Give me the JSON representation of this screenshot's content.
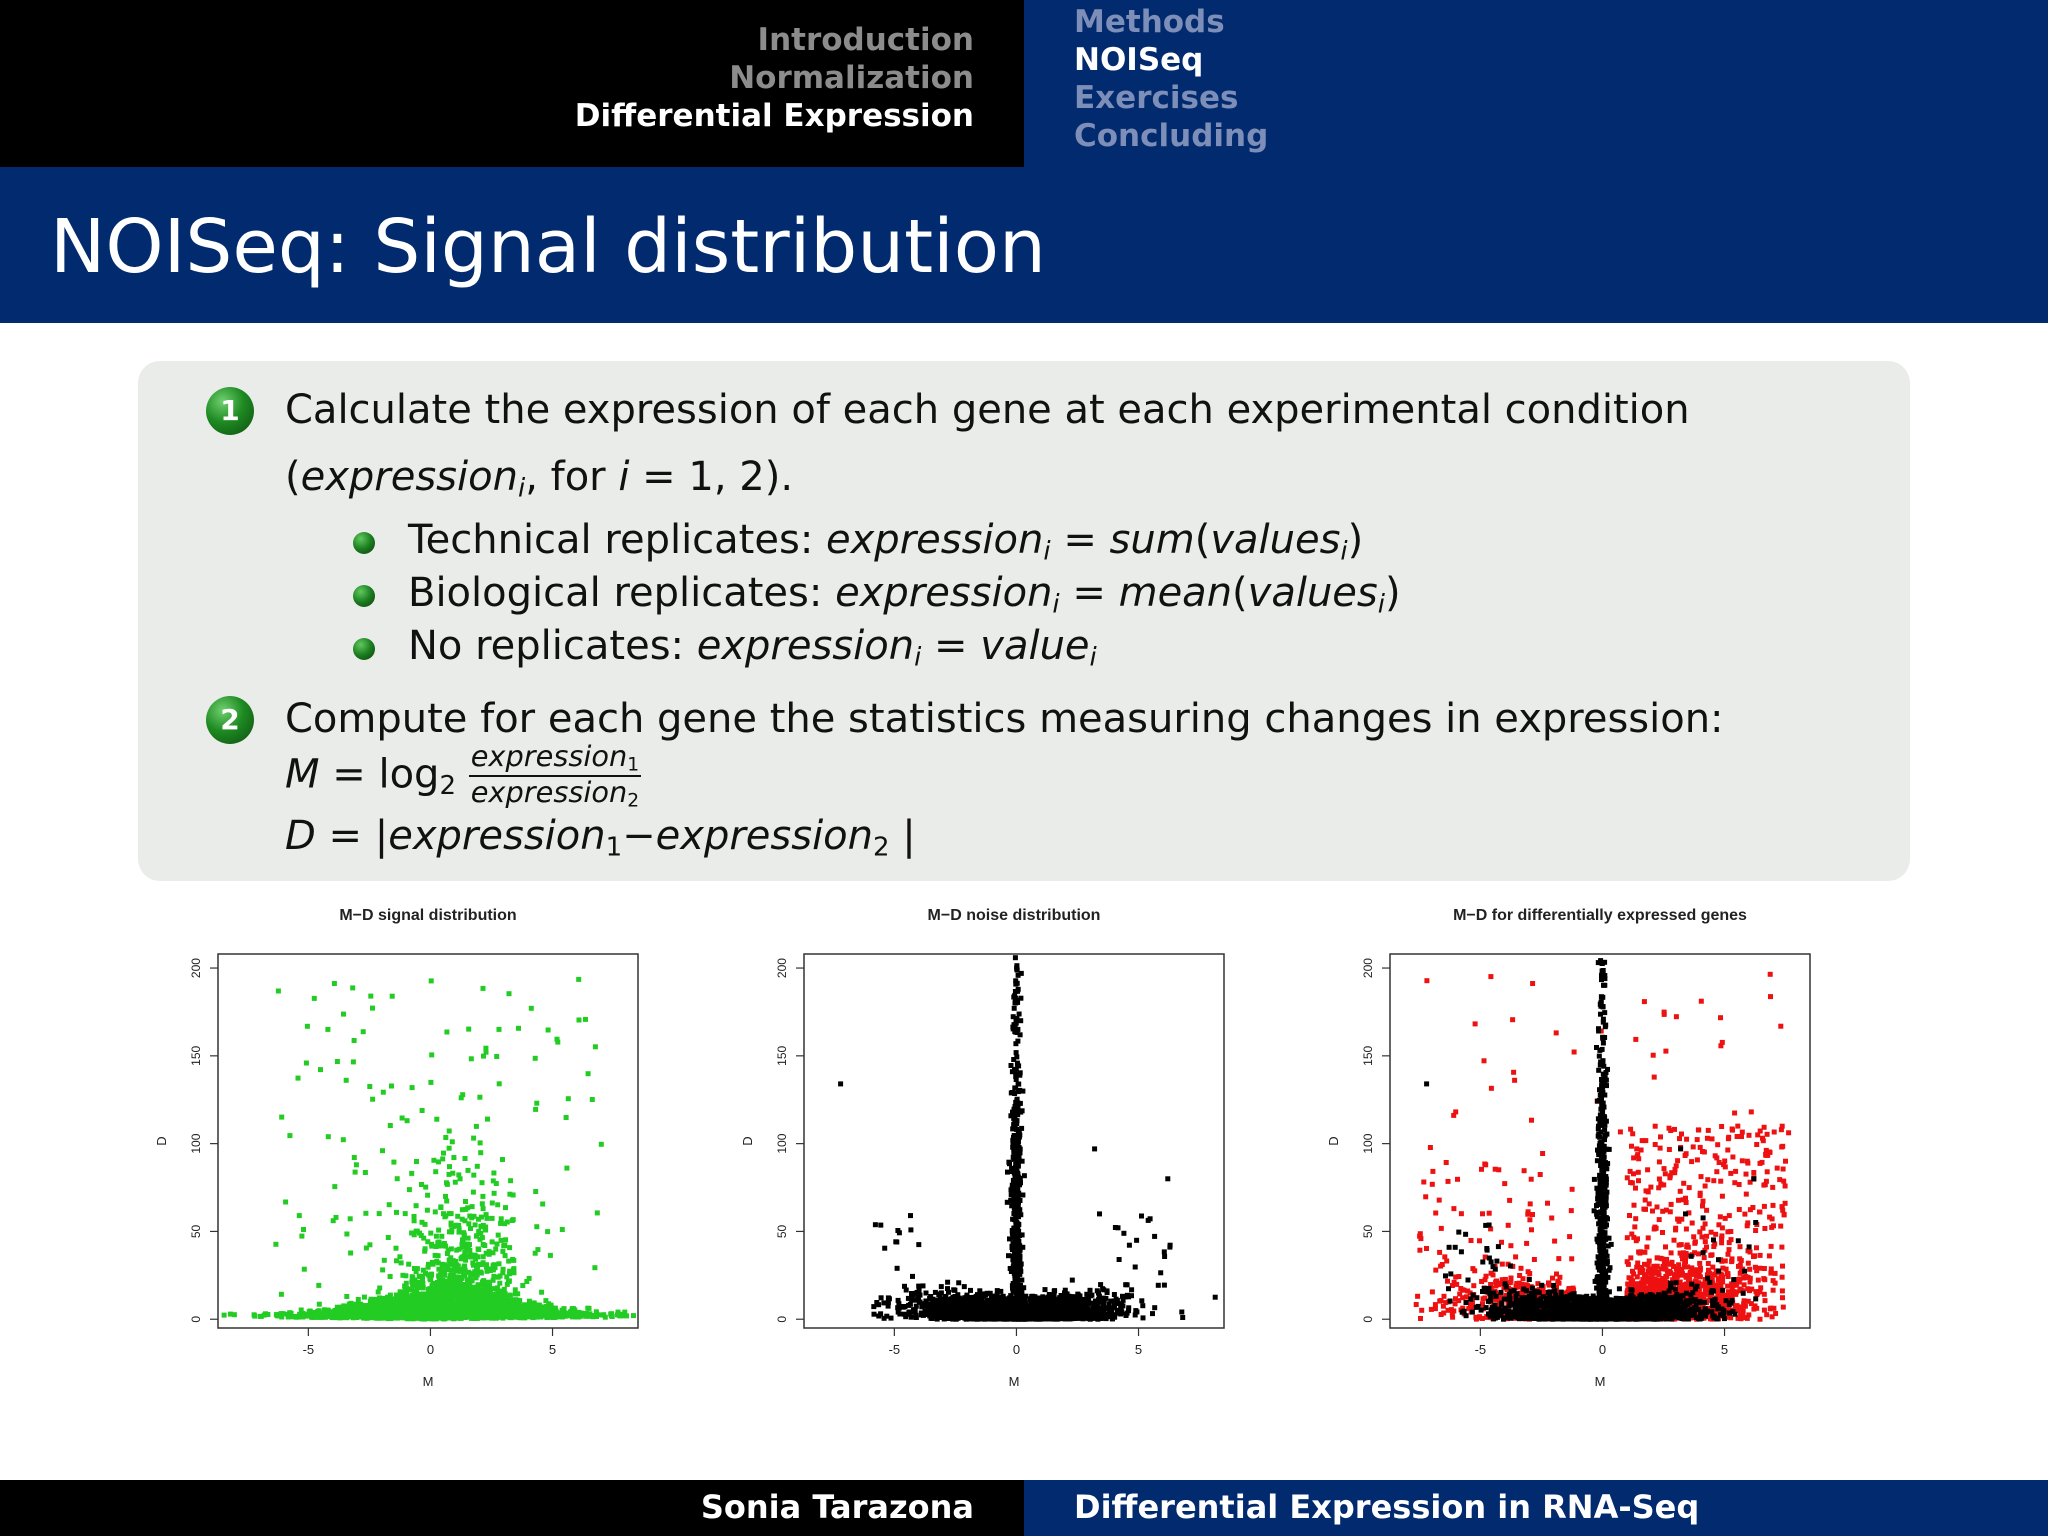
{
  "header": {
    "left_sections": [
      {
        "label": "Introduction",
        "active": false
      },
      {
        "label": "Normalization",
        "active": false
      },
      {
        "label": "Differential Expression",
        "active": true
      }
    ],
    "right_subsections": [
      {
        "label": "Methods",
        "active": false
      },
      {
        "label": "NOISeq",
        "active": true
      },
      {
        "label": "Exercises",
        "active": false
      },
      {
        "label": "Concluding",
        "active": false
      }
    ]
  },
  "slide": {
    "title": "NOISeq: Signal distribution",
    "steps": [
      {
        "number": "1",
        "line1": "Calculate the expression of each gene at each experimental condition",
        "line2_open": "(",
        "line2_math": "expression",
        "line2_sub": "i",
        "line2_rest": ", for",
        "line2_var": "i",
        "line2_eq": " = 1, 2).",
        "bullets": [
          {
            "label": "Technical replicates:",
            "lhs": "expression",
            "lhs_sub": "i",
            "op": "=",
            "fn": "sum",
            "arg": "values",
            "arg_sub": "i"
          },
          {
            "label": "Biological replicates:",
            "lhs": "expression",
            "lhs_sub": "i",
            "op": "=",
            "fn": "mean",
            "arg": "values",
            "arg_sub": "i"
          },
          {
            "label": "No replicates:",
            "lhs": "expression",
            "lhs_sub": "i",
            "op": "=",
            "fn": "",
            "arg": "value",
            "arg_sub": "i"
          }
        ]
      },
      {
        "number": "2",
        "line1": "Compute for each gene the statistics measuring changes in expression:",
        "m_formula": {
          "lhs": "M",
          "eq": "=",
          "log": "log",
          "base": "2",
          "num": "expression",
          "num_sub": "1",
          "den": "expression",
          "den_sub": "2"
        },
        "d_formula": {
          "lhs": "D",
          "eq": "=",
          "bar_open": "|",
          "a": "expression",
          "a_sub": "1",
          "minus": "−",
          "b": "expression",
          "b_sub": "2",
          "bar_close": "|"
        }
      }
    ]
  },
  "plots": [
    {
      "title": "M−D signal distribution",
      "xlabel": "M",
      "ylabel": "D",
      "xticks": [
        "-5",
        "0",
        "5"
      ],
      "yticks": [
        "0",
        "50",
        "100",
        "150",
        "200"
      ],
      "color": "#22cc22"
    },
    {
      "title": "M−D noise distribution",
      "xlabel": "M",
      "ylabel": "D",
      "xticks": [
        "-5",
        "0",
        "5"
      ],
      "yticks": [
        "0",
        "50",
        "100",
        "150",
        "200"
      ],
      "color": "#000000"
    },
    {
      "title": "M−D for differentially expressed genes",
      "xlabel": "M",
      "ylabel": "D",
      "xticks": [
        "-5",
        "0",
        "5"
      ],
      "yticks": [
        "0",
        "50",
        "100",
        "150",
        "200"
      ],
      "color": "#000000",
      "highlight_color": "#ee1111"
    }
  ],
  "chart_data": [
    {
      "type": "scatter",
      "title": "M−D signal distribution",
      "xlabel": "M",
      "ylabel": "D",
      "xlim": [
        -8.5,
        8.5
      ],
      "ylim": [
        -5,
        210
      ],
      "series": [
        {
          "color": "#22cc22",
          "description_points": "dense cloud near D≈0 across M from -7 to 8, peak spread near M 0..2 up to D≈200"
        }
      ]
    },
    {
      "type": "scatter",
      "title": "M−D noise distribution",
      "xlabel": "M",
      "ylabel": "D",
      "xlim": [
        -8.5,
        8.5
      ],
      "ylim": [
        -5,
        210
      ],
      "series": [
        {
          "color": "#000000"
        }
      ]
    },
    {
      "type": "scatter",
      "title": "M−D for differentially expressed genes",
      "xlabel": "M",
      "ylabel": "D",
      "xlim": [
        -8.5,
        8.5
      ],
      "ylim": [
        -5,
        210
      ],
      "series": [
        {
          "color": "#000000"
        },
        {
          "color": "#ee1111"
        }
      ]
    }
  ],
  "footer": {
    "author": "Sonia Tarazona",
    "talk_title": "Differential Expression in RNA-Seq"
  }
}
